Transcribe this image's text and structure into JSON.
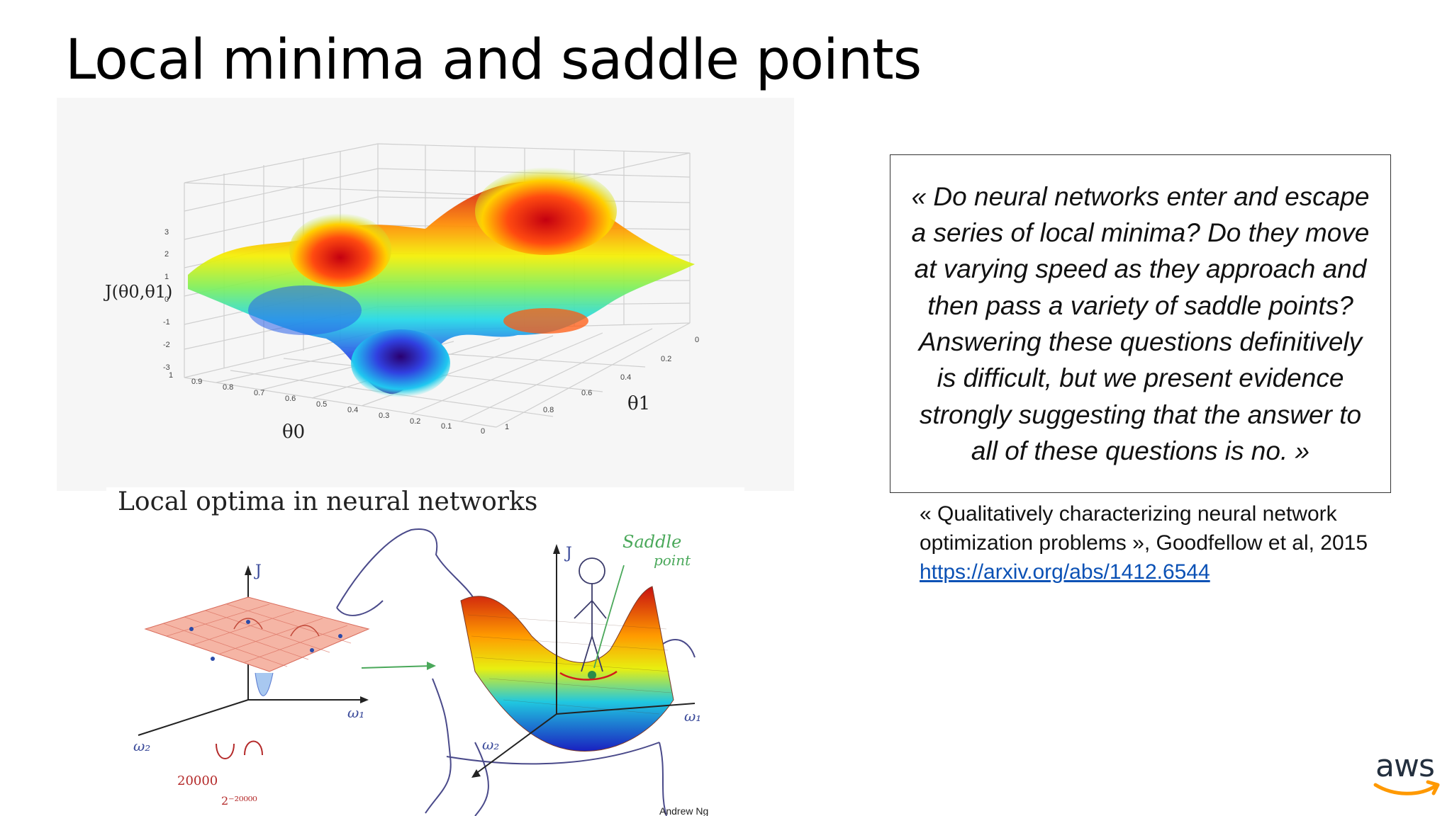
{
  "slide": {
    "title": "Local minima and saddle points"
  },
  "top_figure": {
    "y_label": "J(θ0,θ1)",
    "x_label": "θ0",
    "z_label": "θ1",
    "y_ticks": [
      "3",
      "2",
      "1",
      "0",
      "-1",
      "-2",
      "-3"
    ],
    "x_ticks": [
      "1",
      "0.9",
      "0.8",
      "0.7",
      "0.6",
      "0.5",
      "0.4",
      "0.3",
      "0.2",
      "0.1",
      "0"
    ],
    "z_ticks": [
      "0",
      "0.2",
      "0.4",
      "0.6",
      "0.8",
      "1"
    ]
  },
  "bottom_figure": {
    "title": "Local optima in neural networks",
    "axis_J": "J",
    "axis_w1": "ω₁",
    "axis_w2": "ω₂",
    "saddle_label_1": "Saddle",
    "saddle_label_2": "point",
    "count_1": "20000",
    "count_2": "2⁻²⁰⁰⁰⁰",
    "credit": "Andrew Ng"
  },
  "quote": {
    "text": "«  Do neural networks enter and escape a series of local minima? Do they move at varying speed as they approach and then pass a variety of saddle points? Answering these questions definitively is difficult, but we present evidence strongly suggesting that the answer to all of these questions is no. »"
  },
  "citation": {
    "text": "« Qualitatively characterizing neural network optimization problems », Goodfellow et al, 2015",
    "link": "https://arxiv.org/abs/1412.6544"
  },
  "logo": {
    "text": "aws",
    "brand_color": "#ff9900"
  }
}
